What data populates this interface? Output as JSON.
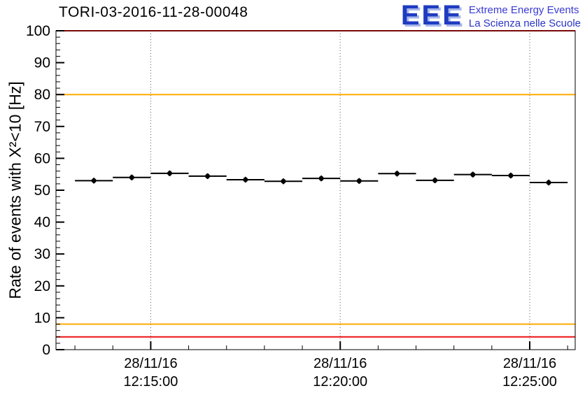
{
  "header": {
    "title": "TORI-03-2016-11-28-00048"
  },
  "logo": {
    "eee_text": "EEE",
    "line1": "Extreme Energy Events",
    "line2": "La Scienza nelle Scuole",
    "eee_color": "#1e3bc0",
    "text_color": "#3a3ad6"
  },
  "chart_data": {
    "type": "scatter",
    "title": "TORI-03-2016-11-28-00048",
    "xlabel": "",
    "ylabel": "Rate of events with X²<10 [Hz]",
    "ylim": [
      0,
      100
    ],
    "y_ticks": [
      0,
      10,
      20,
      30,
      40,
      50,
      60,
      70,
      80,
      90,
      100
    ],
    "grid": "dotted vertical gridlines at major x ticks",
    "legend": "none",
    "x_domain_minutes": [
      -2.5,
      11.2
    ],
    "x_ticks": [
      {
        "minute": 0,
        "label_date": "28/11/16",
        "label_time": "12:15:00"
      },
      {
        "minute": 5,
        "label_date": "28/11/16",
        "label_time": "12:20:00"
      },
      {
        "minute": 10,
        "label_date": "28/11/16",
        "label_time": "12:25:00"
      }
    ],
    "reference_lines": [
      {
        "y": 100,
        "color": "#ee1111"
      },
      {
        "y": 80,
        "color": "#ffaa00"
      },
      {
        "y": 8,
        "color": "#ffaa00"
      },
      {
        "y": 4,
        "color": "#ee1111"
      }
    ],
    "marker": {
      "shape": "filled-circle",
      "color": "#000000",
      "xerr_minutes": 0.5,
      "yerr_hz": 0.9
    },
    "points": [
      {
        "time": "12:13:30",
        "minute": -1.5,
        "rate": 53.0
      },
      {
        "time": "12:14:30",
        "minute": -0.5,
        "rate": 54.0
      },
      {
        "time": "12:15:30",
        "minute": 0.5,
        "rate": 55.3
      },
      {
        "time": "12:16:30",
        "minute": 1.5,
        "rate": 54.4
      },
      {
        "time": "12:17:30",
        "minute": 2.5,
        "rate": 53.3
      },
      {
        "time": "12:18:30",
        "minute": 3.5,
        "rate": 52.8
      },
      {
        "time": "12:19:30",
        "minute": 4.5,
        "rate": 53.7
      },
      {
        "time": "12:20:30",
        "minute": 5.5,
        "rate": 52.9
      },
      {
        "time": "12:21:30",
        "minute": 6.5,
        "rate": 55.2
      },
      {
        "time": "12:22:30",
        "minute": 7.5,
        "rate": 53.1
      },
      {
        "time": "12:23:30",
        "minute": 8.5,
        "rate": 54.9
      },
      {
        "time": "12:24:30",
        "minute": 9.5,
        "rate": 54.6
      },
      {
        "time": "12:25:30",
        "minute": 10.5,
        "rate": 52.4
      }
    ]
  }
}
